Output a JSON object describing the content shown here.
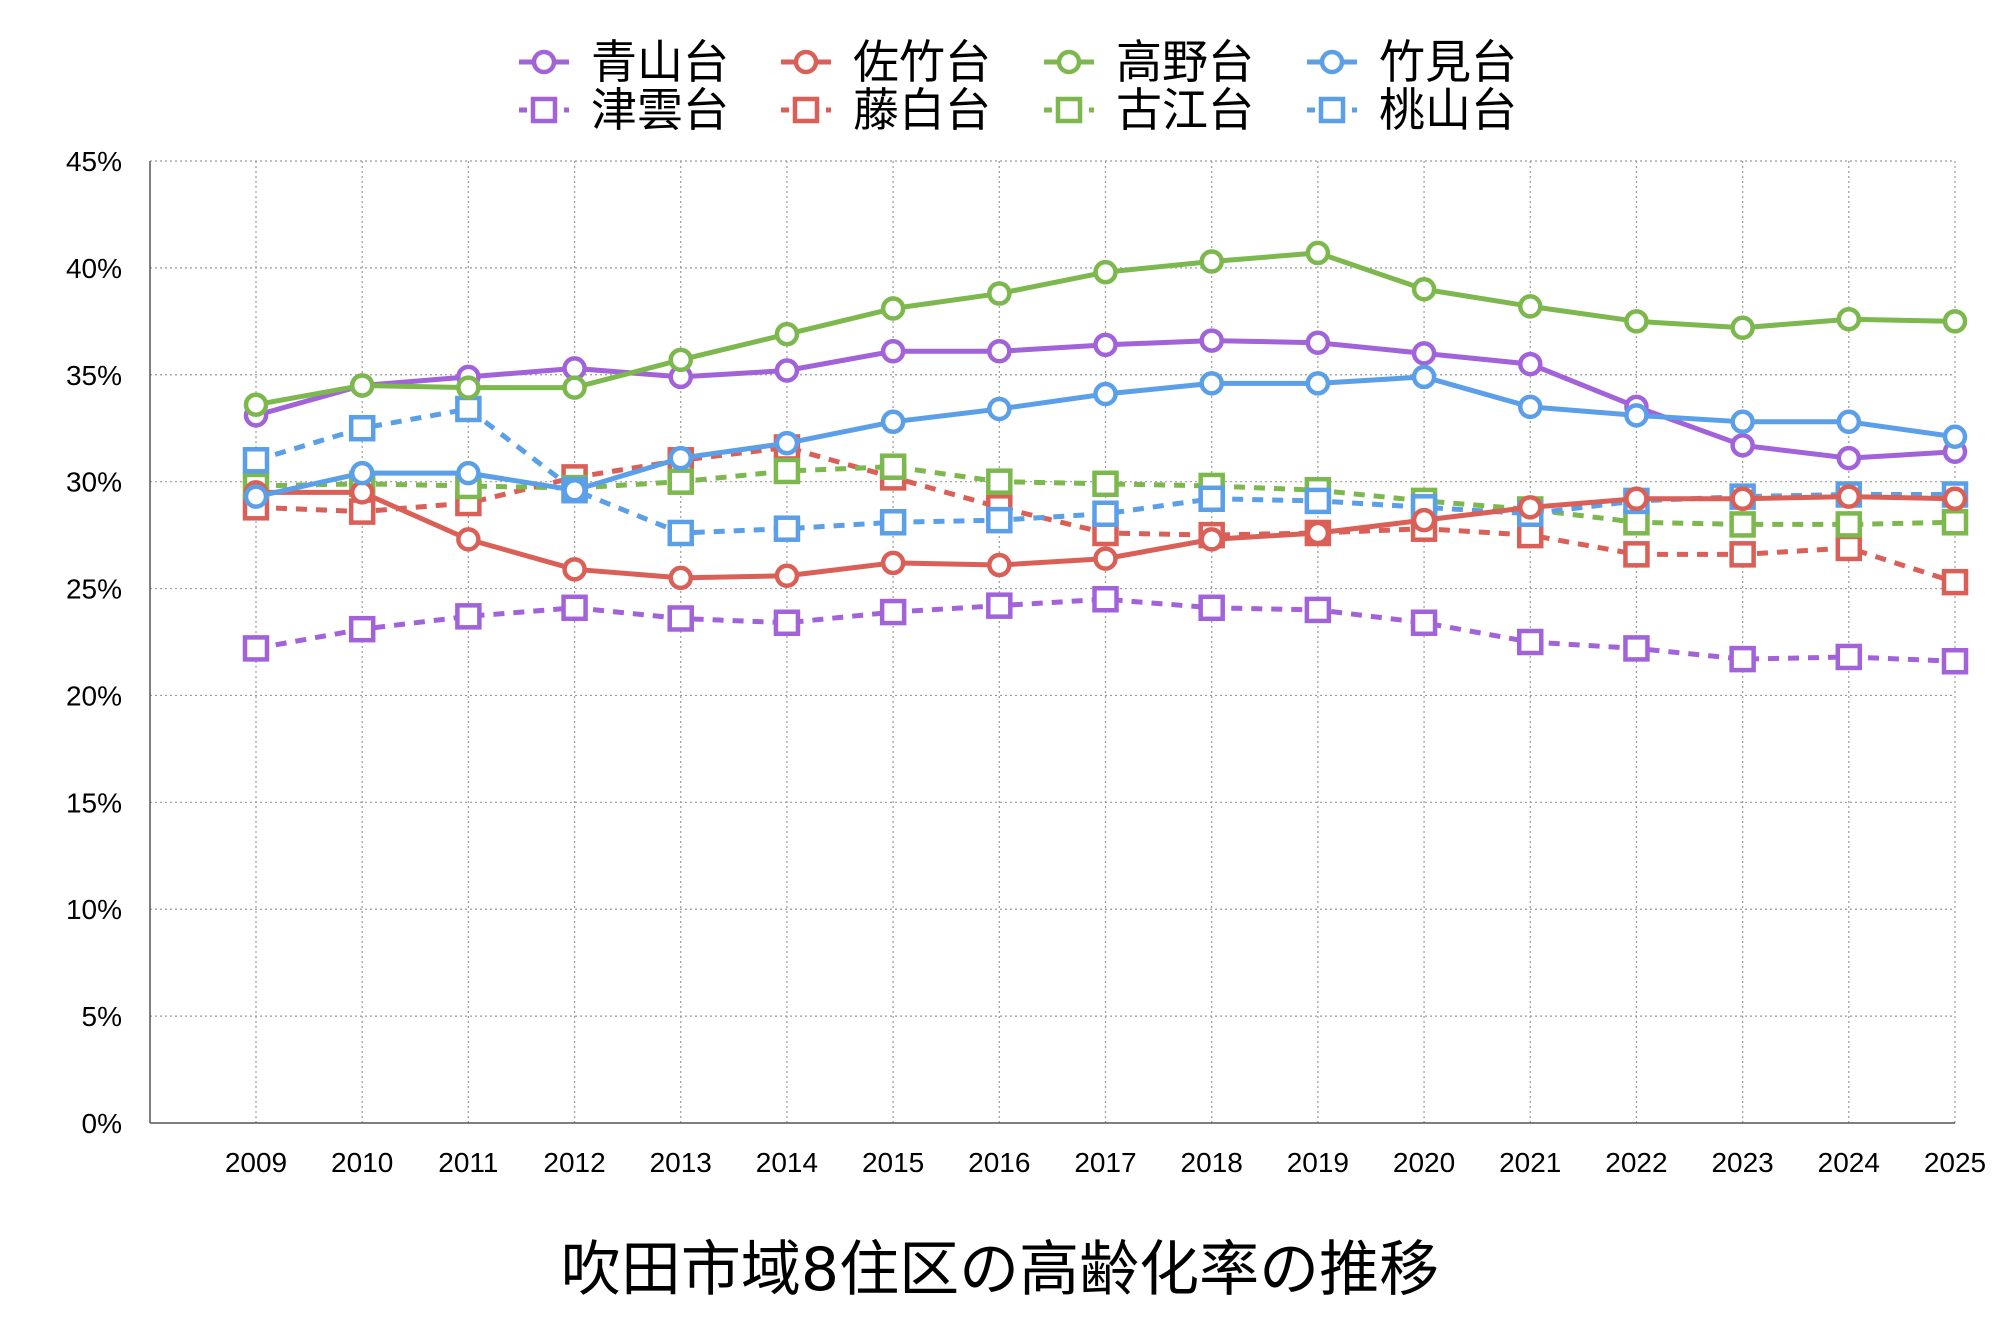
{
  "chart_data": {
    "type": "line",
    "title": "吹田市域8住区の高齢化率の推移",
    "xlabel": "",
    "ylabel": "",
    "ylim": [
      0,
      45
    ],
    "y_ticks": [
      "0%",
      "5%",
      "10%",
      "15%",
      "20%",
      "25%",
      "30%",
      "35%",
      "40%",
      "45%"
    ],
    "grid": true,
    "legend_position": "top",
    "categories": [
      "2009",
      "2010",
      "2011",
      "2012",
      "2013",
      "2014",
      "2015",
      "2016",
      "2017",
      "2018",
      "2019",
      "2020",
      "2021",
      "2022",
      "2023",
      "2024",
      "2025"
    ],
    "series": [
      {
        "name": "青山台",
        "color": "#A262DA",
        "marker": "circle",
        "style": "solid",
        "values": [
          33.1,
          34.5,
          34.9,
          35.3,
          34.9,
          35.2,
          36.1,
          36.1,
          36.4,
          36.6,
          36.5,
          36.0,
          35.5,
          33.5,
          31.7,
          31.1,
          31.4
        ]
      },
      {
        "name": "佐竹台",
        "color": "#DA5F57",
        "marker": "circle",
        "style": "solid",
        "values": [
          29.5,
          29.5,
          27.3,
          25.9,
          25.5,
          25.6,
          26.2,
          26.1,
          26.4,
          27.3,
          27.6,
          28.2,
          28.8,
          29.2,
          29.2,
          29.3,
          29.2
        ]
      },
      {
        "name": "高野台",
        "color": "#7CB84D",
        "marker": "circle",
        "style": "solid",
        "values": [
          33.6,
          34.5,
          34.4,
          34.4,
          35.7,
          36.9,
          38.1,
          38.8,
          39.8,
          40.3,
          40.7,
          39.0,
          38.2,
          37.5,
          37.2,
          37.6,
          37.5
        ]
      },
      {
        "name": "竹見台",
        "color": "#5B9FE8",
        "marker": "circle",
        "style": "solid",
        "values": [
          29.3,
          30.4,
          30.4,
          29.6,
          31.1,
          31.8,
          32.8,
          33.4,
          34.1,
          34.6,
          34.6,
          34.9,
          33.5,
          33.1,
          32.8,
          32.8,
          32.1
        ]
      },
      {
        "name": "津雲台",
        "color": "#A262DA",
        "marker": "square",
        "style": "dashed",
        "values": [
          22.2,
          23.1,
          23.7,
          24.1,
          23.6,
          23.4,
          23.9,
          24.2,
          24.5,
          24.1,
          24.0,
          23.4,
          22.5,
          22.2,
          21.7,
          21.8,
          21.6
        ]
      },
      {
        "name": "藤白台",
        "color": "#DA5F57",
        "marker": "square",
        "style": "dashed",
        "values": [
          28.8,
          28.6,
          29.0,
          30.2,
          31.0,
          31.6,
          30.2,
          28.8,
          27.6,
          27.5,
          27.6,
          27.8,
          27.5,
          26.6,
          26.6,
          26.9,
          25.3
        ]
      },
      {
        "name": "古江台",
        "color": "#7CB84D",
        "marker": "square",
        "style": "dashed",
        "values": [
          29.8,
          29.9,
          29.8,
          29.7,
          30.0,
          30.5,
          30.7,
          30.0,
          29.9,
          29.8,
          29.6,
          29.1,
          28.7,
          28.1,
          28.0,
          28.0,
          28.1
        ]
      },
      {
        "name": "桃山台",
        "color": "#5B9FE8",
        "marker": "square",
        "style": "dashed",
        "values": [
          31.0,
          32.5,
          33.4,
          29.6,
          27.6,
          27.8,
          28.1,
          28.2,
          28.5,
          29.2,
          29.1,
          28.8,
          28.5,
          29.1,
          29.3,
          29.4,
          29.4
        ]
      }
    ]
  }
}
